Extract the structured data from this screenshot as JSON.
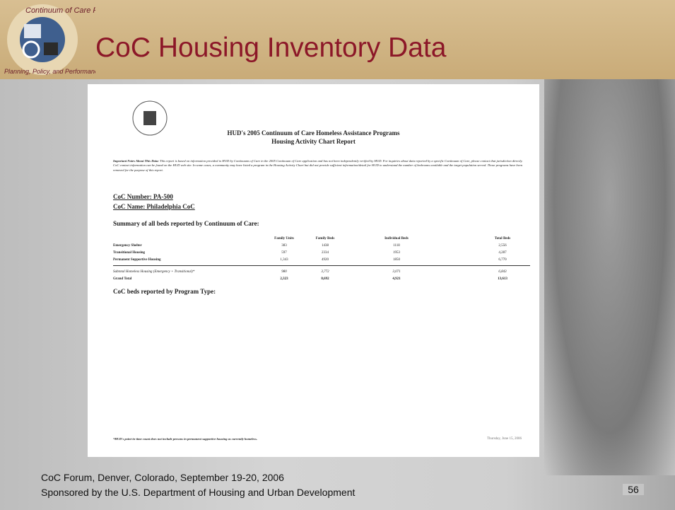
{
  "header": {
    "title": "CoC Housing Inventory Data"
  },
  "logo": {
    "top_text": "Continuum of Care Forum",
    "bottom_text": "Planning, Policy, and Performance"
  },
  "document": {
    "title_lines": [
      "HUD's 2005 Continuum of Care Homeless Assistance Programs",
      "Housing Activity Chart Report"
    ],
    "notes_label": "Important Notes About This Data:",
    "notes_text": "This report is based on information provided to HUD by Continuums of Care in the 2005 Continuum of Care application and has not been independently verified by HUD. For inquiries about data reported by a specific Continuum of Care, please contact that jurisdiction directly. CoC contact information can be found on the HUD web site. In some cases, a community may have listed a program in the Housing Activity Chart but did not provide sufficient information/detail for HUD to understand the number of bedrooms available and the target population served. Those programs have been removed for the purpose of this report.",
    "coc_number": "CoC Number: PA-500",
    "coc_name": "CoC Name: Philadelphia CoC",
    "summary_heading": "Summary of all beds reported by Continuum of Care:",
    "table": {
      "columns": [
        "Family Units",
        "Family Beds",
        "Individual Beds",
        "Total Beds"
      ],
      "rows": [
        [
          "Emergency Shelter",
          "383",
          "1438",
          "1118",
          "2,556"
        ],
        [
          "Transitional Housing",
          "597",
          "2334",
          "1953",
          "4,287"
        ],
        [
          "Permanent Supportive Housing",
          "1,343",
          "4920",
          "1850",
          "6,770"
        ],
        [
          "Subtotal Homeless Housing (Emergency + Transitional)*",
          "980",
          "3,772",
          "3,071",
          "6,843"
        ],
        [
          "Grand Total",
          "2,323",
          "8,692",
          "4,921",
          "13,613"
        ]
      ]
    },
    "program_heading": "CoC beds reported by Program Type:",
    "footnote": "*HUD's point-in-time count does not include persons in permanent supportive housing as currently homeless.",
    "date": "Thursday, June 15, 2006"
  },
  "footer": {
    "lines": [
      "CoC Forum, Denver, Colorado, September 19-20, 2006",
      "Sponsored by the U.S. Department of Housing and Urban Development"
    ],
    "page_number": "56"
  }
}
